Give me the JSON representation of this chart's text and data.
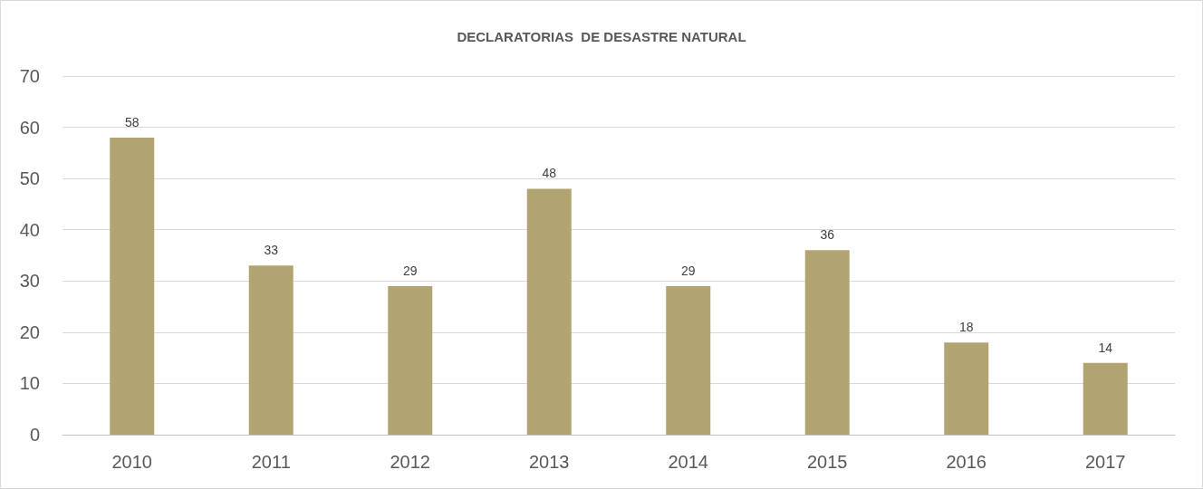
{
  "chart_data": {
    "type": "bar",
    "title": "DECLARATORIAS  DE DESASTRE NATURAL",
    "categories": [
      "2010",
      "2011",
      "2012",
      "2013",
      "2014",
      "2015",
      "2016",
      "2017"
    ],
    "values": [
      58,
      33,
      29,
      48,
      29,
      36,
      18,
      14
    ],
    "color": "#b2a470",
    "ylim": [
      0,
      70
    ],
    "yticks": [
      0,
      10,
      20,
      30,
      40,
      50,
      60,
      70
    ],
    "grid": "y",
    "data_labels": true
  }
}
